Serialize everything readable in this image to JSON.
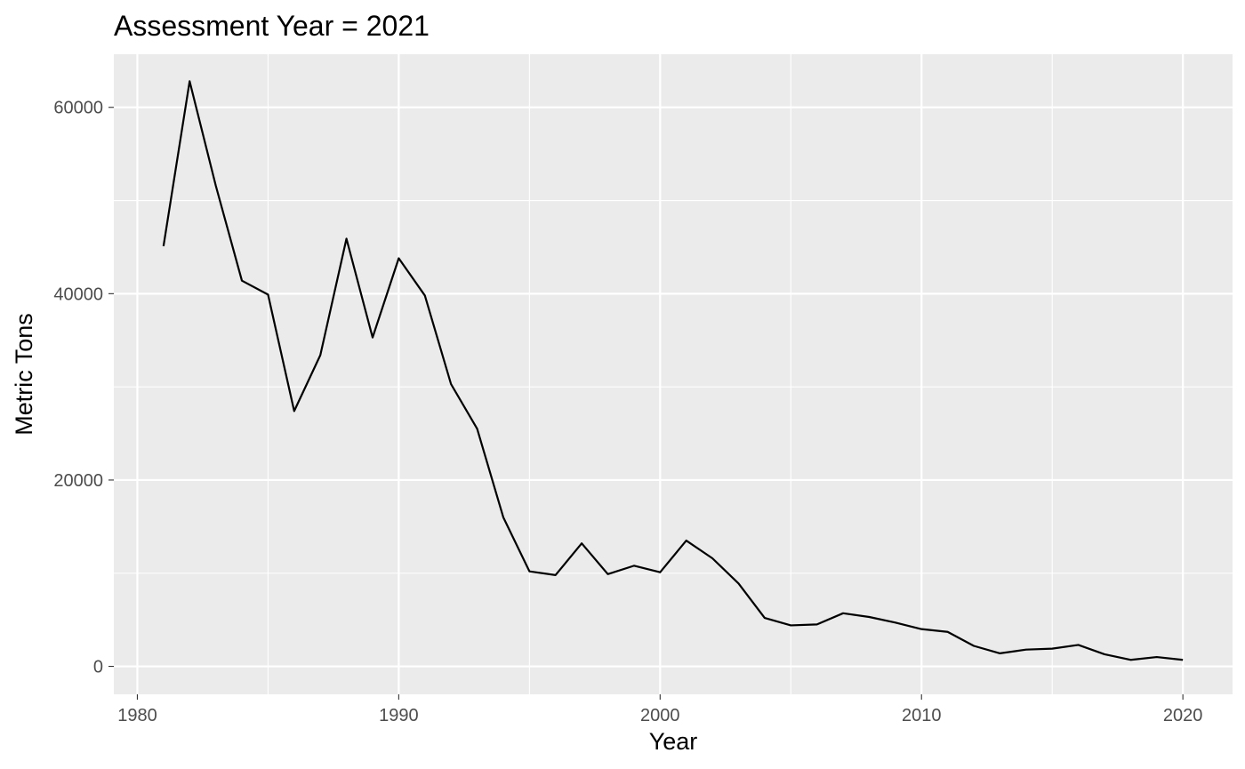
{
  "chart_data": {
    "type": "line",
    "title": "Assessment Year = 2021",
    "xlabel": "Year",
    "ylabel": "Metric Tons",
    "xlim": [
      1979.1,
      2021.9
    ],
    "ylim": [
      -3000,
      65700
    ],
    "x_ticks": [
      1980,
      1990,
      2000,
      2010,
      2020
    ],
    "x_tick_labels": [
      "1980",
      "1990",
      "2000",
      "2010",
      "2020"
    ],
    "x_minor_ticks": [
      1985,
      1995,
      2005,
      2015
    ],
    "y_ticks": [
      0,
      20000,
      40000,
      60000
    ],
    "y_tick_labels": [
      "0",
      "20000",
      "40000",
      "60000"
    ],
    "y_minor_ticks": [
      10000,
      30000,
      50000
    ],
    "grid": true,
    "legend": "none",
    "colors": {
      "panel_background": "#ebebeb",
      "grid_line": "#ffffff",
      "series_line": "#000000",
      "tick_label": "#4d4d4d",
      "tick_mark": "#333333"
    },
    "series": [
      {
        "x": [
          1981,
          1982,
          1983,
          1984,
          1985,
          1986,
          1987,
          1988,
          1989,
          1990,
          1991,
          1992,
          1993,
          1994,
          1995,
          1996,
          1997,
          1998,
          1999,
          2000,
          2001,
          2002,
          2003,
          2004,
          2005,
          2006,
          2007,
          2008,
          2009,
          2010,
          2011,
          2012,
          2013,
          2014,
          2015,
          2016,
          2017,
          2018,
          2019,
          2020
        ],
        "values": [
          45100,
          62800,
          51600,
          41400,
          39900,
          27400,
          33400,
          45900,
          35300,
          43800,
          39800,
          30300,
          25500,
          16000,
          10200,
          9800,
          13200,
          9900,
          10800,
          10100,
          13500,
          11600,
          8900,
          5200,
          4400,
          4500,
          5700,
          5300,
          4700,
          4000,
          3700,
          2200,
          1400,
          1800,
          1900,
          2300,
          1300,
          700,
          1000,
          700
        ]
      }
    ]
  }
}
